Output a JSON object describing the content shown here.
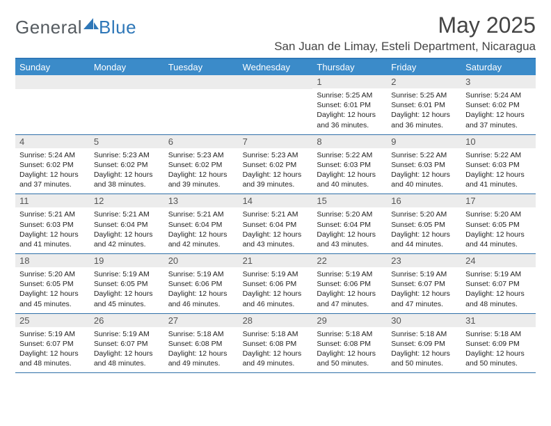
{
  "logo": {
    "text1": "General",
    "text2": "Blue"
  },
  "title": "May 2025",
  "location": "San Juan de Limay, Esteli Department, Nicaragua",
  "colors": {
    "header_bg": "#3b8bc9",
    "border": "#2e6fa8",
    "daynum_bg": "#ececec",
    "logo_gray": "#555b60",
    "logo_blue": "#2e77b8"
  },
  "weekdays": [
    "Sunday",
    "Monday",
    "Tuesday",
    "Wednesday",
    "Thursday",
    "Friday",
    "Saturday"
  ],
  "weeks": [
    [
      {
        "n": "",
        "sr": "",
        "ss": "",
        "dl1": "",
        "dl2": ""
      },
      {
        "n": "",
        "sr": "",
        "ss": "",
        "dl1": "",
        "dl2": ""
      },
      {
        "n": "",
        "sr": "",
        "ss": "",
        "dl1": "",
        "dl2": ""
      },
      {
        "n": "",
        "sr": "",
        "ss": "",
        "dl1": "",
        "dl2": ""
      },
      {
        "n": "1",
        "sr": "Sunrise: 5:25 AM",
        "ss": "Sunset: 6:01 PM",
        "dl1": "Daylight: 12 hours",
        "dl2": "and 36 minutes."
      },
      {
        "n": "2",
        "sr": "Sunrise: 5:25 AM",
        "ss": "Sunset: 6:01 PM",
        "dl1": "Daylight: 12 hours",
        "dl2": "and 36 minutes."
      },
      {
        "n": "3",
        "sr": "Sunrise: 5:24 AM",
        "ss": "Sunset: 6:02 PM",
        "dl1": "Daylight: 12 hours",
        "dl2": "and 37 minutes."
      }
    ],
    [
      {
        "n": "4",
        "sr": "Sunrise: 5:24 AM",
        "ss": "Sunset: 6:02 PM",
        "dl1": "Daylight: 12 hours",
        "dl2": "and 37 minutes."
      },
      {
        "n": "5",
        "sr": "Sunrise: 5:23 AM",
        "ss": "Sunset: 6:02 PM",
        "dl1": "Daylight: 12 hours",
        "dl2": "and 38 minutes."
      },
      {
        "n": "6",
        "sr": "Sunrise: 5:23 AM",
        "ss": "Sunset: 6:02 PM",
        "dl1": "Daylight: 12 hours",
        "dl2": "and 39 minutes."
      },
      {
        "n": "7",
        "sr": "Sunrise: 5:23 AM",
        "ss": "Sunset: 6:02 PM",
        "dl1": "Daylight: 12 hours",
        "dl2": "and 39 minutes."
      },
      {
        "n": "8",
        "sr": "Sunrise: 5:22 AM",
        "ss": "Sunset: 6:03 PM",
        "dl1": "Daylight: 12 hours",
        "dl2": "and 40 minutes."
      },
      {
        "n": "9",
        "sr": "Sunrise: 5:22 AM",
        "ss": "Sunset: 6:03 PM",
        "dl1": "Daylight: 12 hours",
        "dl2": "and 40 minutes."
      },
      {
        "n": "10",
        "sr": "Sunrise: 5:22 AM",
        "ss": "Sunset: 6:03 PM",
        "dl1": "Daylight: 12 hours",
        "dl2": "and 41 minutes."
      }
    ],
    [
      {
        "n": "11",
        "sr": "Sunrise: 5:21 AM",
        "ss": "Sunset: 6:03 PM",
        "dl1": "Daylight: 12 hours",
        "dl2": "and 41 minutes."
      },
      {
        "n": "12",
        "sr": "Sunrise: 5:21 AM",
        "ss": "Sunset: 6:04 PM",
        "dl1": "Daylight: 12 hours",
        "dl2": "and 42 minutes."
      },
      {
        "n": "13",
        "sr": "Sunrise: 5:21 AM",
        "ss": "Sunset: 6:04 PM",
        "dl1": "Daylight: 12 hours",
        "dl2": "and 42 minutes."
      },
      {
        "n": "14",
        "sr": "Sunrise: 5:21 AM",
        "ss": "Sunset: 6:04 PM",
        "dl1": "Daylight: 12 hours",
        "dl2": "and 43 minutes."
      },
      {
        "n": "15",
        "sr": "Sunrise: 5:20 AM",
        "ss": "Sunset: 6:04 PM",
        "dl1": "Daylight: 12 hours",
        "dl2": "and 43 minutes."
      },
      {
        "n": "16",
        "sr": "Sunrise: 5:20 AM",
        "ss": "Sunset: 6:05 PM",
        "dl1": "Daylight: 12 hours",
        "dl2": "and 44 minutes."
      },
      {
        "n": "17",
        "sr": "Sunrise: 5:20 AM",
        "ss": "Sunset: 6:05 PM",
        "dl1": "Daylight: 12 hours",
        "dl2": "and 44 minutes."
      }
    ],
    [
      {
        "n": "18",
        "sr": "Sunrise: 5:20 AM",
        "ss": "Sunset: 6:05 PM",
        "dl1": "Daylight: 12 hours",
        "dl2": "and 45 minutes."
      },
      {
        "n": "19",
        "sr": "Sunrise: 5:19 AM",
        "ss": "Sunset: 6:05 PM",
        "dl1": "Daylight: 12 hours",
        "dl2": "and 45 minutes."
      },
      {
        "n": "20",
        "sr": "Sunrise: 5:19 AM",
        "ss": "Sunset: 6:06 PM",
        "dl1": "Daylight: 12 hours",
        "dl2": "and 46 minutes."
      },
      {
        "n": "21",
        "sr": "Sunrise: 5:19 AM",
        "ss": "Sunset: 6:06 PM",
        "dl1": "Daylight: 12 hours",
        "dl2": "and 46 minutes."
      },
      {
        "n": "22",
        "sr": "Sunrise: 5:19 AM",
        "ss": "Sunset: 6:06 PM",
        "dl1": "Daylight: 12 hours",
        "dl2": "and 47 minutes."
      },
      {
        "n": "23",
        "sr": "Sunrise: 5:19 AM",
        "ss": "Sunset: 6:07 PM",
        "dl1": "Daylight: 12 hours",
        "dl2": "and 47 minutes."
      },
      {
        "n": "24",
        "sr": "Sunrise: 5:19 AM",
        "ss": "Sunset: 6:07 PM",
        "dl1": "Daylight: 12 hours",
        "dl2": "and 48 minutes."
      }
    ],
    [
      {
        "n": "25",
        "sr": "Sunrise: 5:19 AM",
        "ss": "Sunset: 6:07 PM",
        "dl1": "Daylight: 12 hours",
        "dl2": "and 48 minutes."
      },
      {
        "n": "26",
        "sr": "Sunrise: 5:19 AM",
        "ss": "Sunset: 6:07 PM",
        "dl1": "Daylight: 12 hours",
        "dl2": "and 48 minutes."
      },
      {
        "n": "27",
        "sr": "Sunrise: 5:18 AM",
        "ss": "Sunset: 6:08 PM",
        "dl1": "Daylight: 12 hours",
        "dl2": "and 49 minutes."
      },
      {
        "n": "28",
        "sr": "Sunrise: 5:18 AM",
        "ss": "Sunset: 6:08 PM",
        "dl1": "Daylight: 12 hours",
        "dl2": "and 49 minutes."
      },
      {
        "n": "29",
        "sr": "Sunrise: 5:18 AM",
        "ss": "Sunset: 6:08 PM",
        "dl1": "Daylight: 12 hours",
        "dl2": "and 50 minutes."
      },
      {
        "n": "30",
        "sr": "Sunrise: 5:18 AM",
        "ss": "Sunset: 6:09 PM",
        "dl1": "Daylight: 12 hours",
        "dl2": "and 50 minutes."
      },
      {
        "n": "31",
        "sr": "Sunrise: 5:18 AM",
        "ss": "Sunset: 6:09 PM",
        "dl1": "Daylight: 12 hours",
        "dl2": "and 50 minutes."
      }
    ]
  ]
}
